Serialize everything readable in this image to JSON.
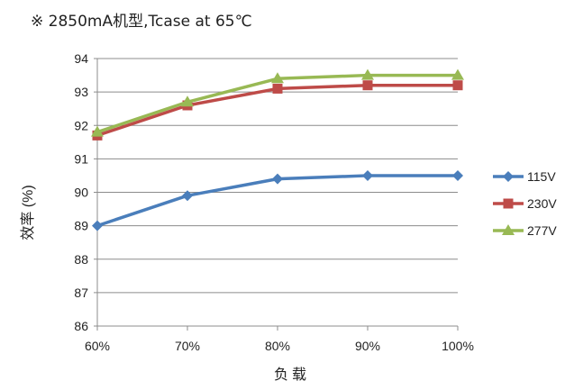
{
  "chart_data": {
    "type": "line",
    "title": "※ 2850mA机型,Tcase at 65℃",
    "xlabel": "负载",
    "ylabel": "效率 (%)",
    "categories": [
      "60%",
      "70%",
      "80%",
      "90%",
      "100%"
    ],
    "ylim": [
      86,
      94
    ],
    "yticks": [
      "86",
      "87",
      "88",
      "89",
      "90",
      "91",
      "92",
      "93",
      "94"
    ],
    "grid": true,
    "legend": "right",
    "series": [
      {
        "name": "115V",
        "values": [
          89.0,
          89.9,
          90.4,
          90.5,
          90.5
        ],
        "color": "#4a7ebb",
        "marker": "diamond"
      },
      {
        "name": "230V",
        "values": [
          91.7,
          92.6,
          93.1,
          93.2,
          93.2
        ],
        "color": "#be4b48",
        "marker": "square"
      },
      {
        "name": "277V",
        "values": [
          91.8,
          92.7,
          93.4,
          93.5,
          93.5
        ],
        "color": "#98b954",
        "marker": "triangle"
      }
    ]
  }
}
